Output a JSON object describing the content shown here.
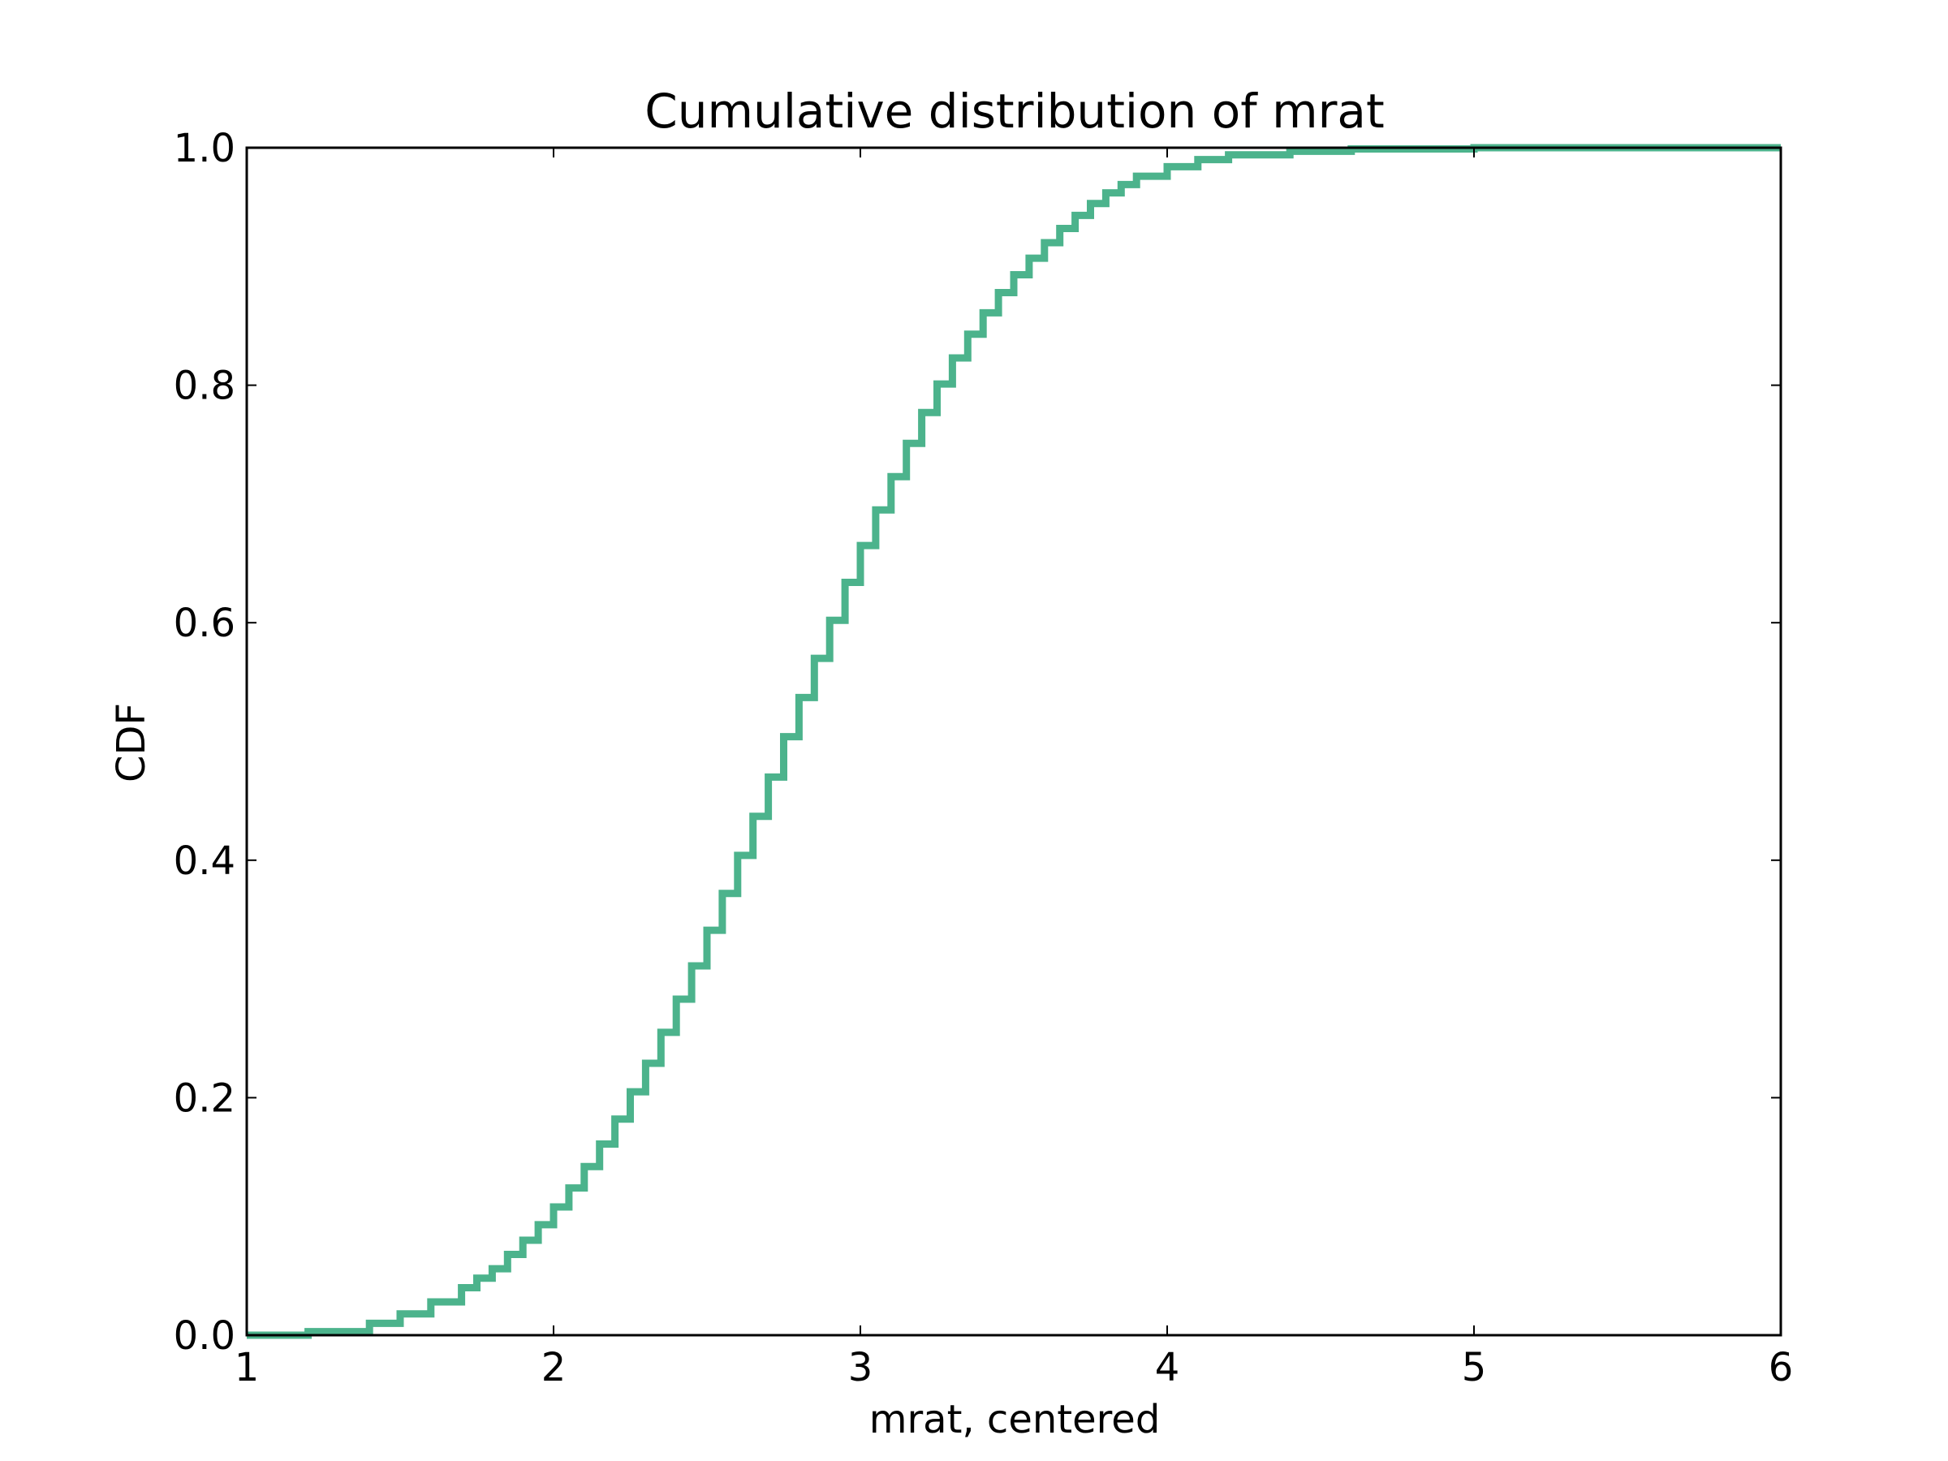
{
  "colors": {
    "series": "#4cb38c",
    "axes": "#000000",
    "background": "#ffffff"
  },
  "chart_data": {
    "type": "line",
    "step": true,
    "title": "Cumulative distribution of mrat",
    "xlabel": "mrat, centered",
    "ylabel": "CDF",
    "xlim": [
      1,
      6
    ],
    "ylim": [
      0.0,
      1.0
    ],
    "grid": false,
    "legend": "none",
    "x_ticks": [
      1,
      2,
      3,
      4,
      5,
      6
    ],
    "x_tick_labels": [
      "1",
      "2",
      "3",
      "4",
      "5",
      "6"
    ],
    "y_ticks": [
      0.0,
      0.2,
      0.4,
      0.6,
      0.8,
      1.0
    ],
    "y_tick_labels": [
      "0.0",
      "0.2",
      "0.4",
      "0.6",
      "0.8",
      "1.0"
    ],
    "series": [
      {
        "x": [
          1.0,
          1.2,
          1.4,
          1.5,
          1.6,
          1.7,
          1.75,
          1.8,
          1.85,
          1.9,
          1.95,
          2.0,
          2.05,
          2.1,
          2.15,
          2.2,
          2.25,
          2.3,
          2.35,
          2.4,
          2.45,
          2.5,
          2.55,
          2.6,
          2.65,
          2.7,
          2.75,
          2.8,
          2.85,
          2.9,
          2.95,
          3.0,
          3.05,
          3.1,
          3.15,
          3.2,
          3.25,
          3.3,
          3.35,
          3.4,
          3.45,
          3.5,
          3.55,
          3.6,
          3.65,
          3.7,
          3.75,
          3.8,
          3.85,
          3.9,
          4.0,
          4.1,
          4.2,
          4.4,
          4.6,
          5.0,
          6.0
        ],
        "values": [
          0.0,
          0.003,
          0.01,
          0.018,
          0.028,
          0.04,
          0.048,
          0.056,
          0.068,
          0.08,
          0.093,
          0.108,
          0.124,
          0.142,
          0.161,
          0.182,
          0.205,
          0.229,
          0.255,
          0.283,
          0.311,
          0.341,
          0.372,
          0.404,
          0.437,
          0.47,
          0.504,
          0.537,
          0.57,
          0.602,
          0.634,
          0.665,
          0.695,
          0.723,
          0.751,
          0.777,
          0.801,
          0.823,
          0.843,
          0.861,
          0.878,
          0.893,
          0.907,
          0.92,
          0.932,
          0.943,
          0.953,
          0.962,
          0.969,
          0.976,
          0.984,
          0.99,
          0.994,
          0.997,
          0.999,
          1.0,
          1.0
        ]
      }
    ]
  }
}
